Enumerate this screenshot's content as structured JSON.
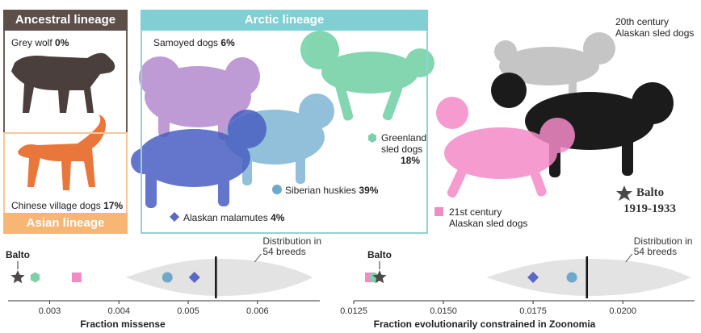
{
  "lineages": {
    "ancestral": "Ancestral lineage",
    "arctic": "Arctic lineage",
    "asian": "Asian lineage"
  },
  "groups": {
    "grey_wolf": {
      "name": "Grey wolf",
      "value": "0%"
    },
    "chinese_village": {
      "name": "Chinese village dogs",
      "value": "17%"
    },
    "samoyed": {
      "name": "Samoyed dogs",
      "value": "6%"
    },
    "siberian": {
      "name": "Siberian huskies",
      "value": "39%"
    },
    "greenland": {
      "name_line1": "Greenland",
      "name_line2": "sled dogs",
      "value": "18%"
    },
    "malamute": {
      "name": "Alaskan malamutes",
      "value": "4%"
    },
    "c21": {
      "line1": "21st century",
      "line2": "Alaskan sled dogs"
    },
    "c20": {
      "line1": "20th century",
      "line2": "Alaskan sled dogs"
    }
  },
  "balto": {
    "name": "Balto",
    "years": "1919-1933"
  },
  "colors": {
    "balto": "#4a4a4a",
    "greenland": "#7ed0a8",
    "c21": "#f08cc4",
    "siberian": "#6ea9c9",
    "malamute": "#5b67c7",
    "violin": "#e3e3e3",
    "median": "#111111"
  },
  "chart_data": [
    {
      "type": "scatter",
      "xlabel": "Fraction missense",
      "xlim": [
        0.0024,
        0.0069
      ],
      "ticks": [
        "0.003",
        "0.004",
        "0.005",
        "0.006"
      ],
      "tick_values": [
        0.003,
        0.004,
        0.005,
        0.006
      ],
      "distribution_label": [
        "Distribution in",
        "54 breeds"
      ],
      "balto_label": "Balto",
      "distribution": {
        "min": 0.0041,
        "max": 0.0068,
        "median": 0.0054
      },
      "points": [
        {
          "group": "balto",
          "x": 0.00254,
          "shape": "star"
        },
        {
          "group": "greenland",
          "x": 0.00279,
          "shape": "hexagon"
        },
        {
          "group": "c21",
          "x": 0.00339,
          "shape": "square"
        },
        {
          "group": "siberian",
          "x": 0.0047,
          "shape": "circle"
        },
        {
          "group": "malamute",
          "x": 0.00509,
          "shape": "diamond"
        }
      ]
    },
    {
      "type": "scatter",
      "xlabel": "Fraction evolutionarily constrained in Zoonomia",
      "xlim": [
        0.0125,
        0.022
      ],
      "ticks": [
        "0.0125",
        "0.0150",
        "0.0175",
        "0.0200"
      ],
      "tick_values": [
        0.0125,
        0.015,
        0.0175,
        0.02
      ],
      "distribution_label": [
        "Distribution in",
        "54 breeds"
      ],
      "balto_label": "Balto",
      "distribution": {
        "min": 0.0162,
        "max": 0.0219,
        "median": 0.019
      },
      "points": [
        {
          "group": "c21",
          "x": 0.01295,
          "shape": "square"
        },
        {
          "group": "greenland",
          "x": 0.01307,
          "shape": "hexagon"
        },
        {
          "group": "balto",
          "x": 0.01322,
          "shape": "star"
        },
        {
          "group": "malamute",
          "x": 0.0175,
          "shape": "diamond"
        },
        {
          "group": "siberian",
          "x": 0.01858,
          "shape": "circle"
        }
      ]
    }
  ]
}
